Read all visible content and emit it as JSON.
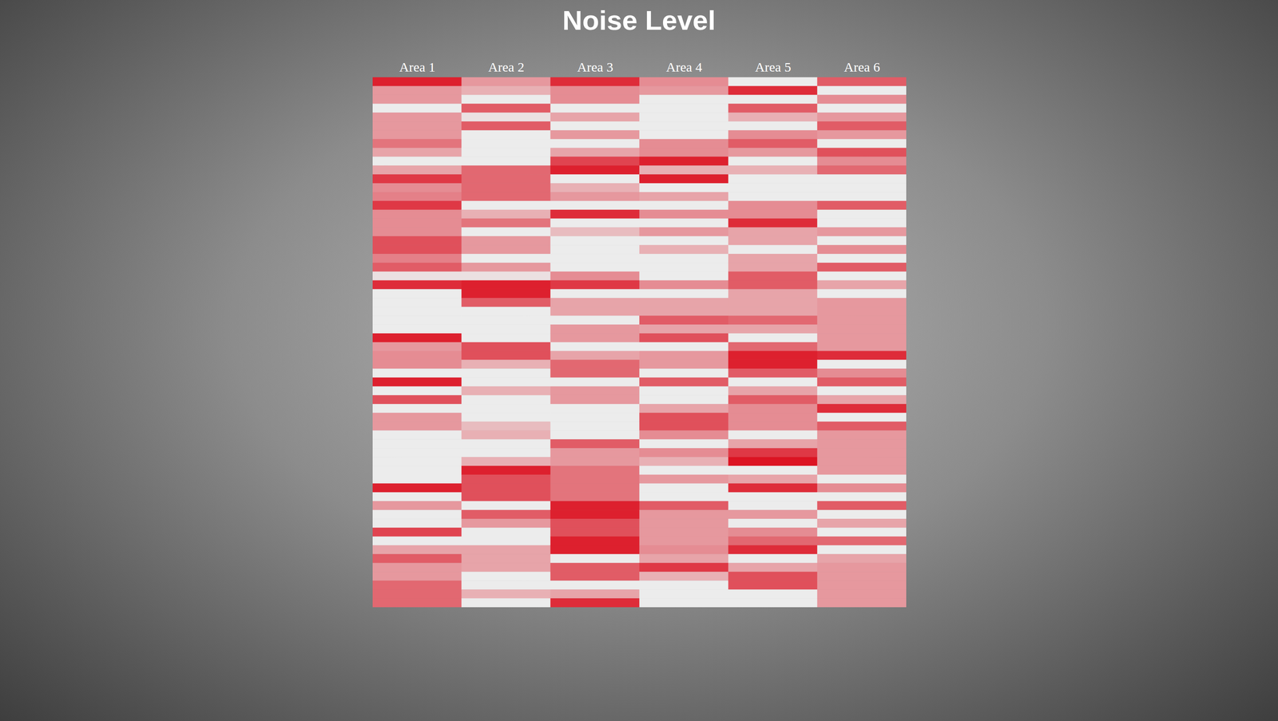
{
  "chart_data": {
    "type": "heatmap",
    "title": "Noise Level",
    "categories": [
      "Area 1",
      "Area 2",
      "Area 3",
      "Area 4",
      "Area 5",
      "Area 6"
    ],
    "colors": [
      "#ececec",
      "#dc1423"
    ],
    "tick_labels": "x",
    "cells": [
      [
        90,
        40,
        40,
        5,
        40,
        40,
        40,
        55,
        35,
        5,
        35,
        80,
        45,
        50,
        80,
        45,
        45,
        45,
        70,
        70,
        50,
        65,
        10,
        85,
        5,
        5,
        5,
        5,
        5,
        90,
        40,
        45,
        45,
        5,
        90,
        5,
        70,
        5,
        40,
        40,
        5,
        5,
        5,
        5,
        5,
        5,
        90,
        5,
        40,
        5,
        5,
        75,
        5,
        35,
        65,
        40,
        40,
        60,
        60,
        60
      ],
      [
        40,
        30,
        5,
        65,
        10,
        65,
        5,
        5,
        5,
        5,
        60,
        60,
        60,
        60,
        5,
        30,
        55,
        5,
        40,
        40,
        5,
        40,
        10,
        90,
        90,
        65,
        5,
        5,
        5,
        5,
        70,
        70,
        30,
        5,
        5,
        30,
        5,
        5,
        5,
        25,
        30,
        5,
        5,
        30,
        90,
        70,
        70,
        70,
        5,
        65,
        40,
        5,
        5,
        35,
        35,
        35,
        5,
        5,
        30,
        5
      ],
      [
        85,
        45,
        45,
        5,
        35,
        5,
        40,
        5,
        35,
        75,
        90,
        5,
        30,
        40,
        5,
        85,
        5,
        25,
        5,
        5,
        5,
        5,
        45,
        80,
        5,
        35,
        35,
        5,
        40,
        40,
        5,
        35,
        60,
        60,
        5,
        40,
        40,
        5,
        5,
        5,
        5,
        65,
        40,
        40,
        55,
        55,
        55,
        55,
        90,
        90,
        70,
        70,
        90,
        90,
        5,
        65,
        65,
        5,
        35,
        85
      ],
      [
        45,
        40,
        5,
        5,
        5,
        5,
        5,
        45,
        45,
        90,
        30,
        90,
        5,
        35,
        5,
        45,
        5,
        40,
        5,
        30,
        5,
        5,
        5,
        45,
        5,
        35,
        35,
        65,
        35,
        70,
        5,
        40,
        40,
        5,
        65,
        5,
        5,
        35,
        70,
        70,
        45,
        5,
        45,
        30,
        5,
        40,
        5,
        5,
        65,
        40,
        40,
        40,
        40,
        45,
        35,
        80,
        30,
        5,
        5,
        5
      ],
      [
        5,
        85,
        5,
        65,
        30,
        5,
        45,
        65,
        40,
        5,
        30,
        5,
        5,
        5,
        45,
        45,
        85,
        35,
        35,
        5,
        35,
        35,
        65,
        65,
        35,
        35,
        35,
        60,
        35,
        5,
        60,
        90,
        90,
        65,
        5,
        35,
        65,
        45,
        45,
        45,
        5,
        35,
        80,
        95,
        5,
        35,
        85,
        5,
        5,
        40,
        5,
        45,
        60,
        85,
        5,
        35,
        70,
        70,
        5,
        5
      ],
      [
        65,
        5,
        45,
        5,
        40,
        65,
        40,
        5,
        70,
        45,
        60,
        5,
        5,
        5,
        65,
        5,
        5,
        40,
        5,
        45,
        5,
        65,
        5,
        35,
        5,
        40,
        40,
        40,
        40,
        40,
        40,
        85,
        5,
        45,
        65,
        5,
        35,
        85,
        5,
        65,
        40,
        40,
        40,
        40,
        40,
        5,
        45,
        5,
        65,
        5,
        35,
        5,
        60,
        5,
        35,
        40,
        40,
        40,
        40,
        40
      ]
    ]
  }
}
